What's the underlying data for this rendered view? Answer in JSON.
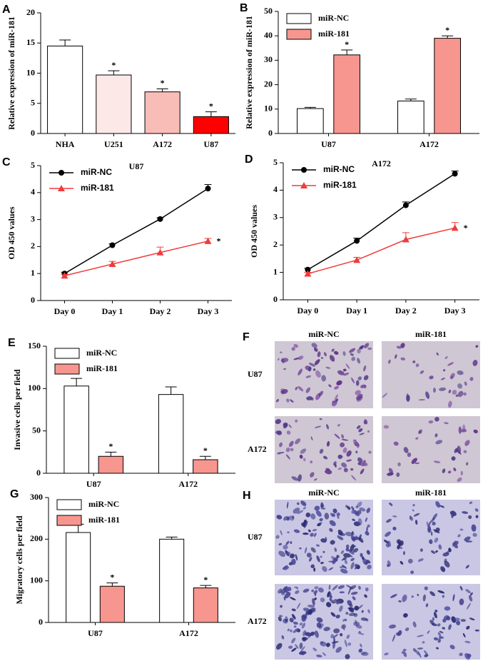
{
  "chart_data": [
    {
      "panel": "A",
      "type": "bar",
      "ylabel": "Relative expression of miR-181",
      "categories": [
        "NHA",
        "U251",
        "A172",
        "U87"
      ],
      "values": [
        14.5,
        9.7,
        6.9,
        2.8
      ],
      "errors": [
        1.0,
        0.7,
        0.5,
        0.8
      ],
      "colors": [
        "#ffffff",
        "#fde8e8",
        "#f9bdb8",
        "#ff0000"
      ],
      "annotations": [
        null,
        "*",
        "*",
        "*"
      ],
      "ylim": [
        0,
        20
      ],
      "yticks": [
        0,
        5,
        10,
        15,
        20
      ]
    },
    {
      "panel": "B",
      "type": "bar",
      "ylabel": "Relative expression of miR-181",
      "legend": "upper left",
      "categories": [
        "U87",
        "A172"
      ],
      "series": [
        {
          "name": "miR-NC",
          "color": "#ffffff",
          "values": [
            10.2,
            13.3
          ],
          "errors": [
            0.5,
            0.8
          ]
        },
        {
          "name": "miR-181",
          "color": "#f7968f",
          "values": [
            32.2,
            39.0
          ],
          "errors": [
            2.0,
            1.0
          ],
          "annotations": [
            "*",
            "*"
          ]
        }
      ],
      "ylim": [
        0,
        50
      ],
      "yticks": [
        0,
        10,
        20,
        30,
        40,
        50
      ]
    },
    {
      "panel": "C",
      "type": "line",
      "title": "U87",
      "ylabel": "OD 450 values",
      "legend": "upper left",
      "categories": [
        "Day 0",
        "Day 1",
        "Day 2",
        "Day 3"
      ],
      "series": [
        {
          "name": "miR-NC",
          "color": "#000000",
          "marker": "o",
          "values": [
            1.0,
            2.05,
            3.02,
            4.15
          ],
          "errors": [
            0.05,
            0.05,
            0.05,
            0.15
          ]
        },
        {
          "name": "miR-181",
          "color": "#f03c3c",
          "marker": "^",
          "values": [
            0.92,
            1.35,
            1.78,
            2.2
          ],
          "errors": [
            0.05,
            0.1,
            0.2,
            0.1
          ],
          "annotations": [
            null,
            null,
            null,
            "*"
          ]
        }
      ],
      "ylim": [
        0,
        5
      ],
      "yticks": [
        0,
        1,
        2,
        3,
        4,
        5
      ]
    },
    {
      "panel": "D",
      "type": "line",
      "title": "A172",
      "ylabel": "OD 450 values",
      "legend": "upper left",
      "categories": [
        "Day 0",
        "Day 1",
        "Day 2",
        "Day 3"
      ],
      "series": [
        {
          "name": "miR-NC",
          "color": "#000000",
          "marker": "o",
          "values": [
            1.1,
            2.15,
            3.45,
            4.6
          ],
          "errors": [
            0.05,
            0.1,
            0.12,
            0.1
          ]
        },
        {
          "name": "miR-181",
          "color": "#f03c3c",
          "marker": "^",
          "values": [
            0.95,
            1.45,
            2.2,
            2.62
          ],
          "errors": [
            0.05,
            0.1,
            0.25,
            0.2
          ],
          "annotations": [
            null,
            null,
            null,
            "*"
          ]
        }
      ],
      "ylim": [
        0,
        5
      ],
      "yticks": [
        0,
        1,
        2,
        3,
        4,
        5
      ]
    },
    {
      "panel": "E",
      "type": "bar",
      "ylabel": "Invasive cells per field",
      "legend": "upper left",
      "categories": [
        "U87",
        "A172"
      ],
      "series": [
        {
          "name": "miR-NC",
          "color": "#ffffff",
          "values": [
            103,
            93
          ],
          "errors": [
            9,
            9
          ]
        },
        {
          "name": "miR-181",
          "color": "#f7968f",
          "values": [
            20,
            16
          ],
          "errors": [
            5,
            4
          ],
          "annotations": [
            "*",
            "*"
          ]
        }
      ],
      "ylim": [
        0,
        150
      ],
      "yticks": [
        0,
        50,
        100,
        150
      ]
    },
    {
      "panel": "G",
      "type": "bar",
      "ylabel": "Migratory cells per field",
      "legend": "upper left",
      "categories": [
        "U87",
        "A172"
      ],
      "series": [
        {
          "name": "miR-NC",
          "color": "#ffffff",
          "values": [
            216,
            200
          ],
          "errors": [
            20,
            5
          ]
        },
        {
          "name": "miR-181",
          "color": "#f7968f",
          "values": [
            87,
            83
          ],
          "errors": [
            8,
            6
          ],
          "annotations": [
            "*",
            "*"
          ]
        }
      ],
      "ylim": [
        0,
        300
      ],
      "yticks": [
        0,
        100,
        200,
        300
      ]
    }
  ],
  "image_panels": [
    {
      "panel": "F",
      "columns": [
        "miR-NC",
        "miR-181"
      ],
      "rows": [
        "U87",
        "A172"
      ]
    },
    {
      "panel": "H",
      "columns": [
        "miR-NC",
        "miR-181"
      ],
      "rows": [
        "U87",
        "A172"
      ]
    }
  ]
}
